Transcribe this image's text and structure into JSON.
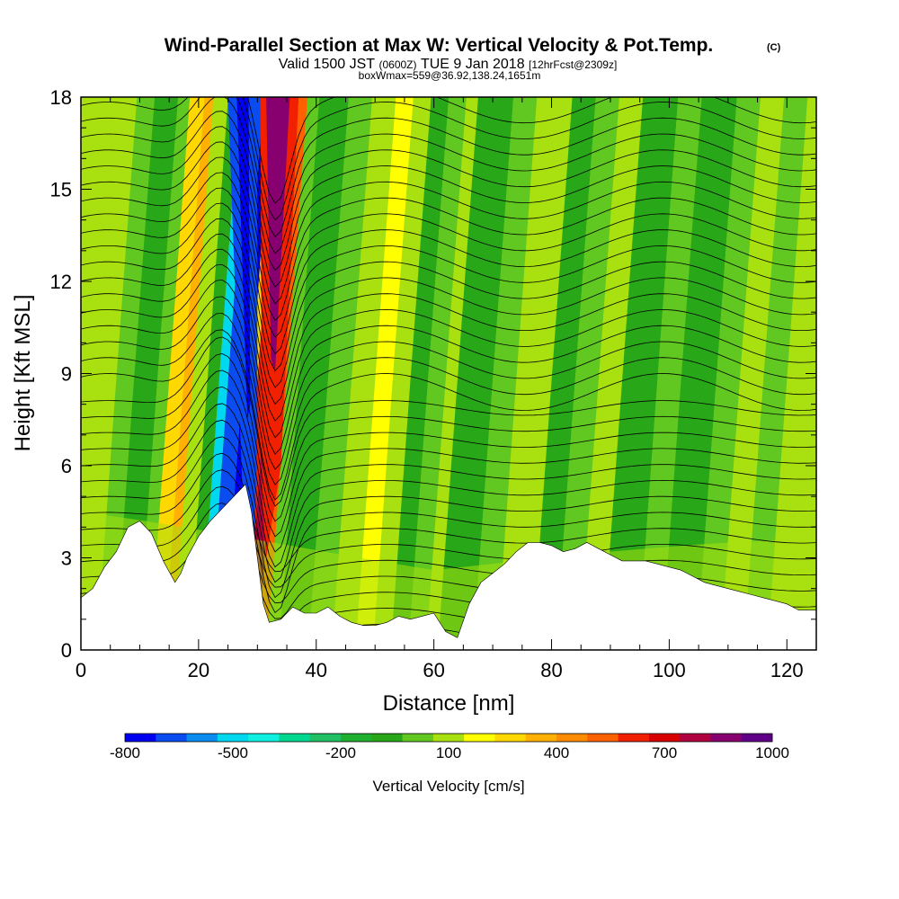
{
  "header": {
    "title": "Wind-Parallel Section at Max W: Vertical Velocity & Pot.Temp.",
    "copyright": "(C)",
    "valid_prefix": "Valid 1500 JST",
    "valid_utc": "(0600Z)",
    "valid_date": "TUE 9 Jan 2018",
    "forecast_info": "[12hrFcst@2309z]",
    "box_info": "boxWmax=559@36.92,138.24,1651m"
  },
  "chart_data": {
    "type": "heatmap",
    "title": "Wind-Parallel Section at Max W: Vertical Velocity & Pot.Temp.",
    "xlabel": "Distance [nm]",
    "ylabel": "Height [Kft MSL]",
    "xlim": [
      0,
      125
    ],
    "ylim": [
      0,
      18
    ],
    "x_ticks": [
      "0",
      "20",
      "40",
      "60",
      "80",
      "100",
      "120"
    ],
    "y_ticks": [
      "0",
      "3",
      "6",
      "9",
      "12",
      "15",
      "18"
    ],
    "colorbar": {
      "title": "Vertical Velocity [cm/s]",
      "tick_labels": [
        "-800",
        "-500",
        "-200",
        "100",
        "400",
        "700",
        "1000"
      ],
      "tick_values": [
        -800,
        -500,
        -200,
        100,
        400,
        700,
        1000
      ],
      "range": [
        -800,
        1000
      ],
      "step": 100,
      "colors": [
        "#0000f0",
        "#0a4cf0",
        "#0a8cf0",
        "#00d8f0",
        "#10f0e0",
        "#00d890",
        "#22c064",
        "#20b030",
        "#28a818",
        "#60c820",
        "#a8e010",
        "#ffff00",
        "#ffd800",
        "#ffb000",
        "#ff8c00",
        "#ff6000",
        "#f02000",
        "#d80000",
        "#b00040",
        "#880070",
        "#600088"
      ]
    },
    "terrain_profile": {
      "x": [
        0,
        2,
        4,
        6,
        8,
        10,
        12,
        14,
        16,
        17,
        18,
        20,
        22,
        24,
        26,
        28,
        29,
        30,
        31,
        32,
        34,
        36,
        38,
        40,
        42,
        44,
        46,
        48,
        50,
        52,
        54,
        56,
        58,
        60,
        62,
        64,
        66,
        68,
        70,
        72,
        74,
        76,
        78,
        80,
        82,
        84,
        86,
        88,
        90,
        92,
        94,
        96,
        98,
        100,
        102,
        104,
        106,
        108,
        110,
        112,
        114,
        116,
        118,
        120,
        122,
        125
      ],
      "y": [
        1.7,
        2.0,
        2.7,
        3.2,
        4.0,
        4.2,
        3.8,
        2.9,
        2.2,
        2.5,
        3.0,
        3.7,
        4.2,
        4.6,
        5.0,
        5.4,
        4.5,
        3.0,
        1.5,
        0.9,
        1.0,
        1.4,
        1.2,
        1.2,
        1.4,
        1.1,
        0.9,
        0.8,
        0.8,
        0.9,
        1.1,
        1.0,
        1.1,
        1.2,
        0.6,
        0.4,
        1.5,
        2.2,
        2.5,
        2.8,
        3.2,
        3.5,
        3.5,
        3.4,
        3.2,
        3.3,
        3.5,
        3.3,
        3.1,
        2.9,
        2.9,
        2.9,
        2.8,
        2.7,
        2.6,
        2.4,
        2.2,
        2.1,
        2.0,
        1.9,
        1.8,
        1.7,
        1.6,
        1.5,
        1.3,
        1.3
      ]
    },
    "updraft_max": {
      "x": 34,
      "height_kft": 14,
      "value_cm_s": 1000
    },
    "downdraft_max": {
      "x": 28,
      "height_kft": 14,
      "value_cm_s": -800
    }
  }
}
